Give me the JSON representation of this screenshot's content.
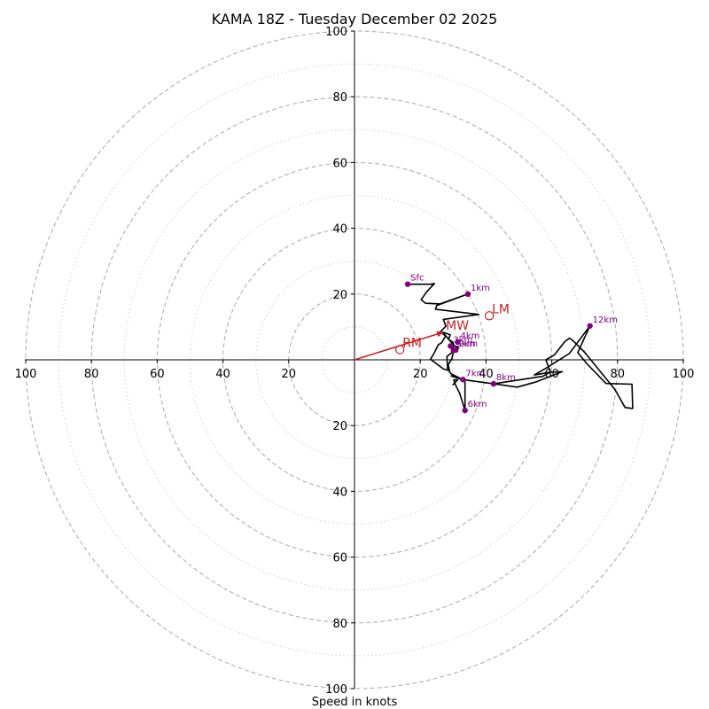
{
  "chart_data": {
    "type": "hodograph",
    "title": "KAMA 18Z - Tuesday December 02 2025",
    "xlabel": "Speed in knots",
    "ylabel": "",
    "xlim": [
      -100,
      100
    ],
    "ylim": [
      -100,
      100
    ],
    "tick_labels": {
      "x": [
        {
          "value": -100,
          "label": "100"
        },
        {
          "value": -80,
          "label": "80"
        },
        {
          "value": -60,
          "label": "60"
        },
        {
          "value": -40,
          "label": "40"
        },
        {
          "value": -20,
          "label": "20"
        },
        {
          "value": 20,
          "label": "20"
        },
        {
          "value": 40,
          "label": "40"
        },
        {
          "value": 60,
          "label": "60"
        },
        {
          "value": 80,
          "label": "80"
        },
        {
          "value": 100,
          "label": "100"
        }
      ],
      "y": [
        {
          "value": 100,
          "label": "100"
        },
        {
          "value": 80,
          "label": "80"
        },
        {
          "value": 60,
          "label": "60"
        },
        {
          "value": 40,
          "label": "40"
        },
        {
          "value": 20,
          "label": "20"
        },
        {
          "value": -20,
          "label": "20"
        },
        {
          "value": -40,
          "label": "40"
        },
        {
          "value": -60,
          "label": "60"
        },
        {
          "value": -80,
          "label": "80"
        },
        {
          "value": -100,
          "label": "100"
        }
      ]
    },
    "rings": {
      "dashed": [
        20,
        40,
        60,
        80,
        100
      ],
      "dotted": [
        10,
        30,
        50,
        70,
        90
      ]
    },
    "trace": [
      [
        16.2,
        23.0
      ],
      [
        23.0,
        23.0
      ],
      [
        24.3,
        23.2
      ],
      [
        21.8,
        20.5
      ],
      [
        20.3,
        18.3
      ],
      [
        21.6,
        17.2
      ],
      [
        26.0,
        17.0
      ],
      [
        34.5,
        20.0
      ],
      [
        25.0,
        16.5
      ],
      [
        24.6,
        15.4
      ],
      [
        37.8,
        13.8
      ],
      [
        27.0,
        12.3
      ],
      [
        27.8,
        10.2
      ],
      [
        26.2,
        8.6
      ],
      [
        27.7,
        7.2
      ],
      [
        26.5,
        5.2
      ],
      [
        25.5,
        4.6
      ],
      [
        24.1,
        1.8
      ],
      [
        23.1,
        0.2
      ],
      [
        27.1,
        -2.8
      ],
      [
        28.9,
        -3.3
      ],
      [
        28.5,
        -1.5
      ],
      [
        29.6,
        0.3
      ],
      [
        30.1,
        2.6
      ],
      [
        29.9,
        4.8
      ],
      [
        28.6,
        6.3
      ],
      [
        26.8,
        8.4
      ],
      [
        29.1,
        7.6
      ],
      [
        28.6,
        6.2
      ],
      [
        29.9,
        5.4
      ],
      [
        30.3,
        4.3
      ],
      [
        31.7,
        3.6
      ],
      [
        30.1,
        2.6
      ],
      [
        28.1,
        1.0
      ],
      [
        28.3,
        -2.6
      ],
      [
        29.3,
        -4.2
      ],
      [
        32.9,
        -6.0
      ],
      [
        42.3,
        -7.3
      ],
      [
        49.5,
        -8.3
      ],
      [
        55.0,
        -6.8
      ],
      [
        63.2,
        -3.6
      ],
      [
        59.5,
        -3.8
      ],
      [
        54.7,
        -4.6
      ],
      [
        58.3,
        -2.5
      ],
      [
        65.3,
        1.9
      ],
      [
        71.6,
        10.3
      ],
      [
        67.9,
        2.2
      ],
      [
        70.7,
        -1.2
      ],
      [
        76.5,
        -7.2
      ],
      [
        84.4,
        -7.4
      ],
      [
        84.6,
        -14.8
      ],
      [
        82.3,
        -14.5
      ],
      [
        79.2,
        -9.0
      ],
      [
        70.0,
        2.3
      ],
      [
        66.6,
        5.7
      ],
      [
        65.4,
        6.6
      ],
      [
        63.9,
        5.5
      ],
      [
        60.8,
        1.5
      ],
      [
        58.2,
        0.0
      ],
      [
        59.6,
        -3.7
      ],
      [
        57.3,
        -5.0
      ],
      [
        42.3,
        -7.3
      ],
      [
        32.9,
        -6.0
      ],
      [
        29.4,
        -4.9
      ],
      [
        30.7,
        -5.0
      ],
      [
        33.6,
        -6.7
      ],
      [
        33.6,
        -15.4
      ],
      [
        32.0,
        -10.2
      ],
      [
        30.7,
        -7.6
      ],
      [
        30.2,
        -6.1
      ],
      [
        31.4,
        -6.1
      ],
      [
        29.8,
        -7.7
      ]
    ],
    "height_points": [
      {
        "label": "Sfc",
        "u": 16.2,
        "v": 23.0
      },
      {
        "label": "1km",
        "u": 34.5,
        "v": 20.0
      },
      {
        "label": "2km",
        "u": 30.8,
        "v": 3.0
      },
      {
        "label": "3km",
        "u": 29.2,
        "v": 4.2
      },
      {
        "label": "4km",
        "u": 31.4,
        "v": 5.4
      },
      {
        "label": "5km",
        "u": 30.1,
        "v": 2.9
      },
      {
        "label": "6km",
        "u": 33.6,
        "v": -15.4
      },
      {
        "label": "7km",
        "u": 33.0,
        "v": -6.0
      },
      {
        "label": "8km",
        "u": 42.3,
        "v": -7.3
      },
      {
        "label": "12km",
        "u": 71.6,
        "v": 10.3
      }
    ],
    "storm_motion": [
      {
        "label": "RM",
        "u": 13.8,
        "v": 3.1
      },
      {
        "label": "LM",
        "u": 41.0,
        "v": 13.4
      },
      {
        "label": "MW",
        "u": 27.0,
        "v": 8.4
      }
    ],
    "mean_wind_vector": {
      "u": 27.0,
      "v": 8.4
    },
    "colors": {
      "trace": "#000000",
      "height_points": "#800080",
      "storm_motion": "#cc2222",
      "rings": "#b0b0b0"
    }
  }
}
